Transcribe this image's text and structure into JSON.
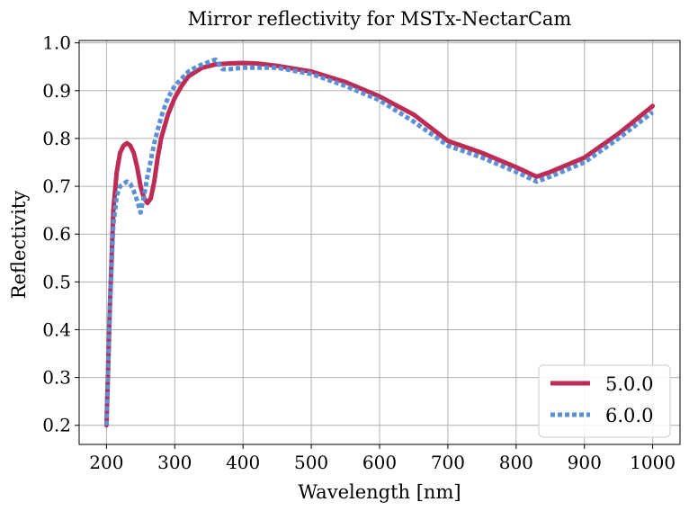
{
  "chart_data": {
    "type": "line",
    "title": "Mirror reflectivity for MSTx-NectarCam",
    "xlabel": "Wavelength [nm]",
    "ylabel": "Reflectivity",
    "xlim": [
      160,
      1040
    ],
    "ylim": [
      0.16,
      1.005
    ],
    "xticks": [
      200,
      300,
      400,
      500,
      600,
      700,
      800,
      900,
      1000
    ],
    "yticks": [
      0.2,
      0.3,
      0.4,
      0.5,
      0.6,
      0.7,
      0.8,
      0.9,
      1.0
    ],
    "grid": true,
    "legend_placement": "lower-right",
    "series": [
      {
        "name": "5.0.0",
        "color": "#bd2c54",
        "style": "solid",
        "x": [
          200,
          205,
          210,
          215,
          220,
          225,
          230,
          235,
          240,
          245,
          250,
          255,
          260,
          265,
          270,
          275,
          280,
          290,
          300,
          310,
          320,
          340,
          360,
          380,
          400,
          420,
          450,
          500,
          550,
          600,
          650,
          700,
          750,
          800,
          830,
          850,
          900,
          950,
          1000
        ],
        "y": [
          0.2,
          0.45,
          0.65,
          0.73,
          0.77,
          0.785,
          0.79,
          0.785,
          0.77,
          0.74,
          0.7,
          0.675,
          0.665,
          0.675,
          0.71,
          0.76,
          0.8,
          0.85,
          0.885,
          0.91,
          0.93,
          0.948,
          0.955,
          0.957,
          0.958,
          0.957,
          0.952,
          0.94,
          0.918,
          0.888,
          0.85,
          0.795,
          0.77,
          0.74,
          0.72,
          0.73,
          0.76,
          0.81,
          0.868
        ]
      },
      {
        "name": "6.0.0",
        "color": "#5b8fd6",
        "style": "dotted",
        "x": [
          200,
          205,
          210,
          215,
          220,
          225,
          230,
          235,
          240,
          245,
          250,
          255,
          260,
          270,
          280,
          290,
          300,
          310,
          320,
          330,
          340,
          350,
          360,
          370,
          380,
          400,
          450,
          500,
          550,
          600,
          650,
          700,
          750,
          800,
          830,
          850,
          900,
          950,
          1000
        ],
        "y": [
          0.2,
          0.45,
          0.62,
          0.68,
          0.7,
          0.705,
          0.71,
          0.705,
          0.69,
          0.67,
          0.645,
          0.68,
          0.72,
          0.79,
          0.845,
          0.885,
          0.91,
          0.925,
          0.94,
          0.948,
          0.955,
          0.96,
          0.965,
          0.945,
          0.945,
          0.948,
          0.948,
          0.935,
          0.91,
          0.88,
          0.835,
          0.785,
          0.76,
          0.73,
          0.71,
          0.72,
          0.75,
          0.8,
          0.855
        ]
      }
    ]
  }
}
